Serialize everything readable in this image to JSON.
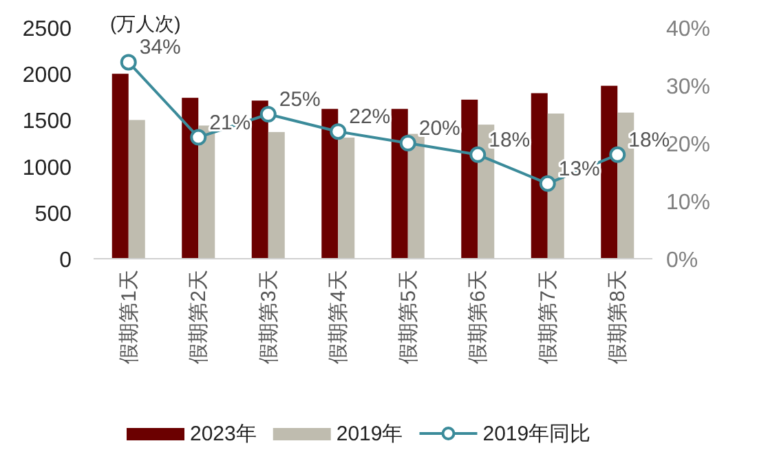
{
  "chart_data": {
    "type": "bar",
    "ylabel": "(万人次)",
    "categories": [
      "假期第1天",
      "假期第2天",
      "假期第3天",
      "假期第4天",
      "假期第5天",
      "假期第6天",
      "假期第7天",
      "假期第8天"
    ],
    "series": [
      {
        "name": "2023年",
        "color": "#6b0000",
        "values": [
          2000,
          1740,
          1710,
          1620,
          1620,
          1720,
          1790,
          1870
        ]
      },
      {
        "name": "2019年",
        "color": "#bfbcaf",
        "values": [
          1500,
          1440,
          1370,
          1310,
          1350,
          1450,
          1570,
          1580
        ]
      },
      {
        "name": "2019年同比",
        "type": "line",
        "axis": "y2",
        "color": "#3b8b9a",
        "marker": "circle",
        "values": [
          34,
          21,
          25,
          22,
          20,
          18,
          13,
          18
        ],
        "value_labels": [
          "34%",
          "21%",
          "25%",
          "22%",
          "20%",
          "18%",
          "13%",
          "18%"
        ]
      }
    ],
    "ylim": [
      0,
      2500
    ],
    "yticks": [
      0,
      500,
      1000,
      1500,
      2000,
      2500
    ],
    "y2lim": [
      0,
      40
    ],
    "y2ticks": [
      {
        "value": 0,
        "label": "0%"
      },
      {
        "value": 10,
        "label": "10%"
      },
      {
        "value": 20,
        "label": "20%"
      },
      {
        "value": 30,
        "label": "30%"
      },
      {
        "value": 40,
        "label": "40%"
      }
    ],
    "legend": "bottom"
  }
}
